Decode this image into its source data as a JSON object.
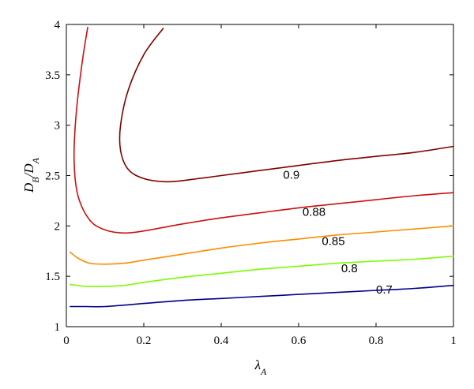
{
  "chart_data": {
    "type": "line",
    "title": "",
    "xlabel": "λ_A",
    "ylabel": "D_B/D_A",
    "xlim": [
      0,
      1
    ],
    "ylim": [
      1,
      4
    ],
    "xticks": [
      0,
      0.2,
      0.4,
      0.6,
      0.8,
      1
    ],
    "xtick_labels": [
      "0",
      "0.2",
      "0.4",
      "0.6",
      "0.8",
      "1"
    ],
    "yticks": [
      1,
      1.5,
      2,
      2.5,
      3,
      3.5,
      4
    ],
    "ytick_labels": [
      "1",
      "1.5",
      "2",
      "2.5",
      "3",
      "3.5",
      "4"
    ],
    "grid": false,
    "legend": "none",
    "series": [
      {
        "label": "0.7",
        "color": "#00008b",
        "label_pos": {
          "x": 0.8,
          "y": 1.33
        },
        "points": [
          [
            0.01,
            1.2
          ],
          [
            0.05,
            1.2
          ],
          [
            0.1,
            1.2
          ],
          [
            0.2,
            1.23
          ],
          [
            0.3,
            1.26
          ],
          [
            0.4,
            1.28
          ],
          [
            0.5,
            1.3
          ],
          [
            0.6,
            1.32
          ],
          [
            0.7,
            1.34
          ],
          [
            0.8,
            1.36
          ],
          [
            0.9,
            1.38
          ],
          [
            1.0,
            1.41
          ]
        ]
      },
      {
        "label": "0.8",
        "color": "#7cfc00",
        "label_pos": {
          "x": 0.71,
          "y": 1.54
        },
        "points": [
          [
            0.01,
            1.42
          ],
          [
            0.05,
            1.4
          ],
          [
            0.1,
            1.4
          ],
          [
            0.15,
            1.41
          ],
          [
            0.2,
            1.44
          ],
          [
            0.3,
            1.49
          ],
          [
            0.4,
            1.53
          ],
          [
            0.5,
            1.57
          ],
          [
            0.6,
            1.6
          ],
          [
            0.7,
            1.63
          ],
          [
            0.8,
            1.65
          ],
          [
            0.9,
            1.67
          ],
          [
            1.0,
            1.7
          ]
        ]
      },
      {
        "label": "0.85",
        "color": "#ff8c00",
        "label_pos": {
          "x": 0.66,
          "y": 1.81
        },
        "points": [
          [
            0.01,
            1.74
          ],
          [
            0.03,
            1.68
          ],
          [
            0.06,
            1.63
          ],
          [
            0.1,
            1.62
          ],
          [
            0.15,
            1.63
          ],
          [
            0.2,
            1.66
          ],
          [
            0.3,
            1.72
          ],
          [
            0.4,
            1.78
          ],
          [
            0.5,
            1.83
          ],
          [
            0.6,
            1.87
          ],
          [
            0.7,
            1.91
          ],
          [
            0.8,
            1.94
          ],
          [
            0.9,
            1.97
          ],
          [
            1.0,
            2.0
          ]
        ]
      },
      {
        "label": "0.88",
        "color": "#cc1010",
        "label_pos": {
          "x": 0.61,
          "y": 2.1
        },
        "points": [
          [
            0.055,
            3.97
          ],
          [
            0.04,
            3.6
          ],
          [
            0.025,
            3.1
          ],
          [
            0.02,
            2.65
          ],
          [
            0.03,
            2.3
          ],
          [
            0.06,
            2.06
          ],
          [
            0.1,
            1.96
          ],
          [
            0.15,
            1.93
          ],
          [
            0.2,
            1.95
          ],
          [
            0.3,
            2.02
          ],
          [
            0.4,
            2.08
          ],
          [
            0.5,
            2.13
          ],
          [
            0.6,
            2.18
          ],
          [
            0.7,
            2.22
          ],
          [
            0.8,
            2.26
          ],
          [
            0.9,
            2.3
          ],
          [
            1.0,
            2.33
          ]
        ]
      },
      {
        "label": "0.9",
        "color": "#800000",
        "label_pos": {
          "x": 0.56,
          "y": 2.47
        },
        "points": [
          [
            0.25,
            3.96
          ],
          [
            0.2,
            3.7
          ],
          [
            0.16,
            3.35
          ],
          [
            0.14,
            3.0
          ],
          [
            0.14,
            2.75
          ],
          [
            0.16,
            2.56
          ],
          [
            0.2,
            2.47
          ],
          [
            0.25,
            2.44
          ],
          [
            0.3,
            2.45
          ],
          [
            0.4,
            2.5
          ],
          [
            0.5,
            2.55
          ],
          [
            0.6,
            2.6
          ],
          [
            0.7,
            2.65
          ],
          [
            0.8,
            2.69
          ],
          [
            0.9,
            2.73
          ],
          [
            1.0,
            2.79
          ]
        ]
      }
    ]
  }
}
